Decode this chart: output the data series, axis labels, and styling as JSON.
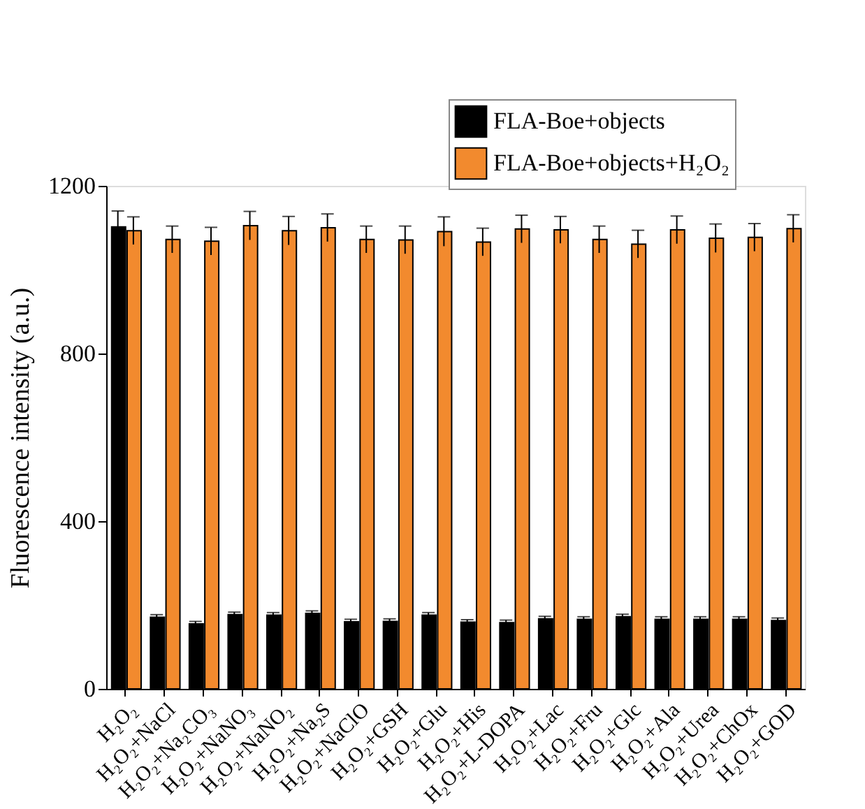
{
  "chart_data": {
    "type": "bar",
    "ylabel": "Fluorescence intensity (a.u.)",
    "categories": [
      "H₂O₂",
      "H₂O₂+NaCl",
      "H₂O₂+Na₂CO₃",
      "H₂O₂+NaNO₃",
      "H₂O₂+NaNO₂",
      "H₂O₂+Na₂S",
      "H₂O₂+NaClO",
      "H₂O₂+GSH",
      "H₂O₂+Glu",
      "H₂O₂+His",
      "H₂O₂+L-DOPA",
      "H₂O₂+Lac",
      "H₂O₂+Fru",
      "H₂O₂+Glc",
      "H₂O₂+Ala",
      "H₂O₂+Urea",
      "H₂O₂+ChOx",
      "H₂O₂+GOD"
    ],
    "series": [
      {
        "name": "FLA-Boe+objects",
        "color": "#000000",
        "values": [
          1102,
          171,
          155,
          177,
          176,
          180,
          160,
          161,
          176,
          159,
          158,
          167,
          166,
          172,
          166,
          166,
          166,
          163
        ],
        "errors": [
          38,
          6,
          6,
          6,
          6,
          6,
          6,
          6,
          6,
          6,
          6,
          6,
          6,
          6,
          6,
          6,
          6,
          6
        ]
      },
      {
        "name": "FLA-Boe+objects+H₂O₂",
        "color": "#f28a2e",
        "values": [
          1093,
          1072,
          1068,
          1105,
          1093,
          1100,
          1072,
          1071,
          1091,
          1066,
          1097,
          1095,
          1072,
          1061,
          1095,
          1075,
          1077,
          1098
        ],
        "errors": [
          33,
          32,
          33,
          34,
          34,
          33,
          32,
          33,
          35,
          33,
          33,
          32,
          32,
          33,
          33,
          34,
          33,
          33
        ]
      }
    ],
    "ylim": [
      0,
      1200
    ],
    "yticks": [
      0,
      400,
      800,
      {
        "value": 1200,
        "label": "1200"
      }
    ],
    "grid": false,
    "legend": "top right"
  }
}
